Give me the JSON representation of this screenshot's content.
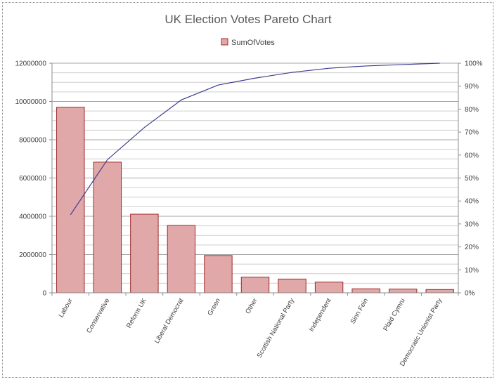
{
  "chart_data": {
    "type": "bar",
    "title": "UK Election Votes Pareto Chart",
    "legend": [
      "SumOfVotes"
    ],
    "legend_position": "top",
    "grid": true,
    "categories": [
      "Labour",
      "Conservative",
      "Reform UK",
      "Liberal Democrat",
      "Green",
      "Other",
      "Scottish National Party",
      "Independent",
      "Sinn Fein",
      "Plaid Cymru",
      "Democratic Unionist Party"
    ],
    "series": [
      {
        "name": "SumOfVotes",
        "type": "bar",
        "values": [
          9700000,
          6830000,
          4110000,
          3520000,
          1950000,
          820000,
          720000,
          560000,
          210000,
          195000,
          172000
        ],
        "color": "#e0a8a8",
        "edge_color": "#a02828"
      },
      {
        "type": "line",
        "axis": "secondary",
        "values": [
          0.34,
          0.58,
          0.72,
          0.84,
          0.905,
          0.935,
          0.96,
          0.978,
          0.988,
          0.994,
          1.0
        ],
        "color": "#3c3c8c"
      }
    ],
    "ylim": [
      0,
      12000000
    ],
    "yticks": [
      "0",
      "2000000",
      "4000000",
      "6000000",
      "8000000",
      "10000000",
      "12000000"
    ],
    "y2lim": [
      0,
      1
    ],
    "y2ticks": [
      "0%",
      "10%",
      "20%",
      "30%",
      "40%",
      "50%",
      "60%",
      "70%",
      "80%",
      "90%",
      "100%"
    ]
  }
}
